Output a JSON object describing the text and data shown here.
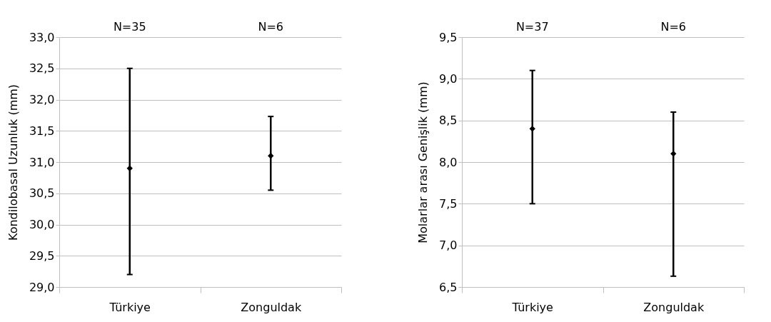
{
  "chart_data": [
    {
      "type": "scatter",
      "ylabel": "Kondilobasal Uzunluk (mm)",
      "categories": [
        "Türkiye",
        "Zonguldak"
      ],
      "annotations": [
        "N=35",
        "N=6"
      ],
      "series": [
        {
          "color": "#000000",
          "values": [
            30.9,
            31.1
          ],
          "errors": [
            [
              29.2,
              32.5
            ],
            [
              30.55,
              31.73
            ]
          ]
        }
      ],
      "ylim": [
        29,
        33
      ],
      "yticks": [
        {
          "value": 29,
          "label": "29,0"
        },
        {
          "value": 29.5,
          "label": "29,5"
        },
        {
          "value": 30,
          "label": "30,0"
        },
        {
          "value": 30.5,
          "label": "30,5"
        },
        {
          "value": 31,
          "label": "31,0"
        },
        {
          "value": 31.5,
          "label": "31,5"
        },
        {
          "value": 32,
          "label": "32,0"
        },
        {
          "value": 32.5,
          "label": "32,5"
        },
        {
          "value": 33,
          "label": "33,0"
        }
      ],
      "grid": "y",
      "marker": "diamond"
    },
    {
      "type": "scatter",
      "ylabel": "Molarlar arası Genişlik (mm)",
      "categories": [
        "Türkiye",
        "Zonguldak"
      ],
      "annotations": [
        "N=37",
        "N=6"
      ],
      "series": [
        {
          "color": "#000000",
          "values": [
            8.4,
            8.1
          ],
          "errors": [
            [
              7.5,
              9.1
            ],
            [
              6.63,
              8.6
            ]
          ]
        }
      ],
      "ylim": [
        6.5,
        9.5
      ],
      "yticks": [
        {
          "value": 6.5,
          "label": "6,5"
        },
        {
          "value": 7,
          "label": "7,0"
        },
        {
          "value": 7.5,
          "label": "7,5"
        },
        {
          "value": 8,
          "label": "8,0"
        },
        {
          "value": 8.5,
          "label": "8,5"
        },
        {
          "value": 9,
          "label": "9,0"
        },
        {
          "value": 9.5,
          "label": "9,5"
        }
      ],
      "grid": "y",
      "marker": "diamond"
    }
  ]
}
